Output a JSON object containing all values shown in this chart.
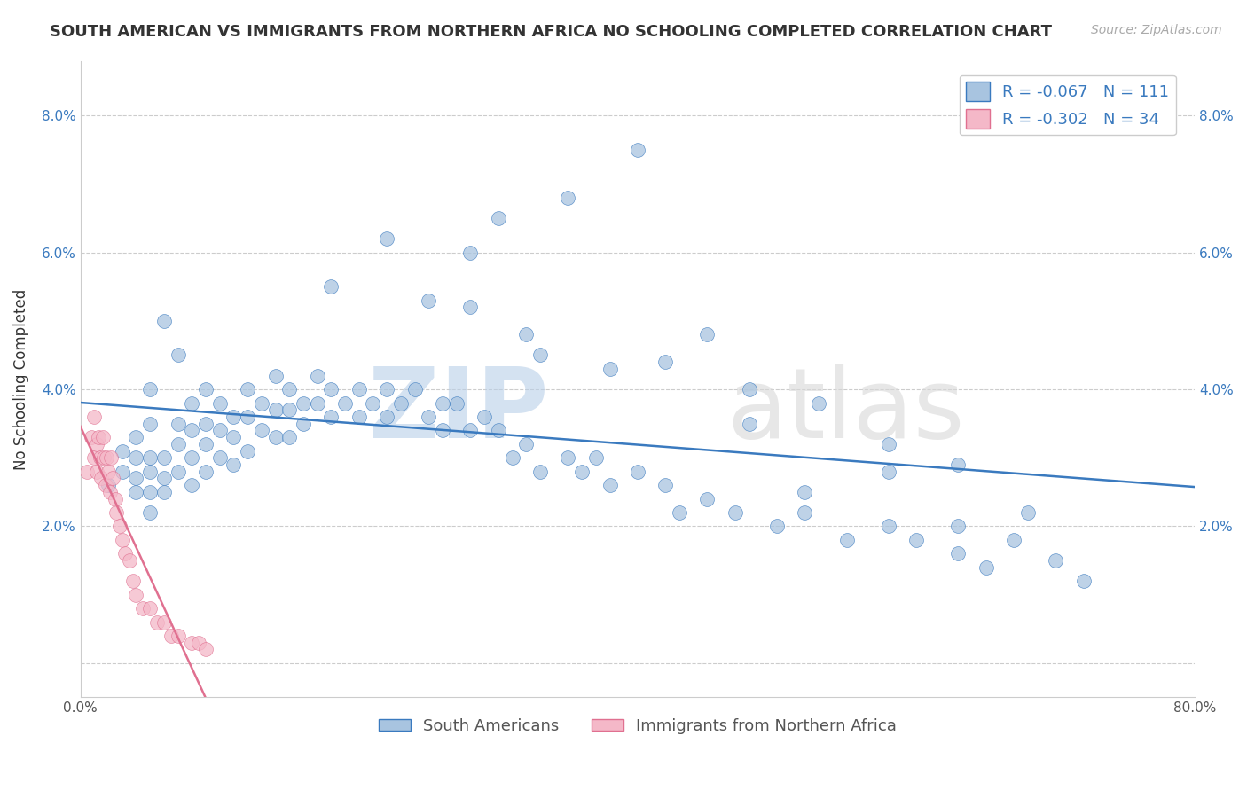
{
  "title": "SOUTH AMERICAN VS IMMIGRANTS FROM NORTHERN AFRICA NO SCHOOLING COMPLETED CORRELATION CHART",
  "source": "Source: ZipAtlas.com",
  "xlabel": "",
  "ylabel": "No Schooling Completed",
  "watermark_zip": "ZIP",
  "watermark_atlas": "atlas",
  "xlim": [
    0.0,
    0.8
  ],
  "ylim": [
    -0.005,
    0.088
  ],
  "yticks": [
    0.0,
    0.02,
    0.04,
    0.06,
    0.08
  ],
  "ytick_labels": [
    "",
    "2.0%",
    "4.0%",
    "6.0%",
    "8.0%"
  ],
  "xticks": [
    0.0,
    0.1,
    0.2,
    0.3,
    0.4,
    0.5,
    0.6,
    0.7,
    0.8
  ],
  "xtick_labels": [
    "0.0%",
    "",
    "",
    "",
    "",
    "",
    "",
    "",
    "80.0%"
  ],
  "blue_R": -0.067,
  "blue_N": 111,
  "pink_R": -0.302,
  "pink_N": 34,
  "blue_color": "#a8c4e0",
  "pink_color": "#f4b8c8",
  "blue_line_color": "#3a7abf",
  "pink_line_color": "#e07090",
  "blue_scatter_x": [
    0.02,
    0.03,
    0.03,
    0.04,
    0.04,
    0.04,
    0.04,
    0.05,
    0.05,
    0.05,
    0.05,
    0.05,
    0.05,
    0.06,
    0.06,
    0.06,
    0.06,
    0.07,
    0.07,
    0.07,
    0.07,
    0.08,
    0.08,
    0.08,
    0.08,
    0.09,
    0.09,
    0.09,
    0.09,
    0.1,
    0.1,
    0.1,
    0.11,
    0.11,
    0.11,
    0.12,
    0.12,
    0.12,
    0.13,
    0.13,
    0.14,
    0.14,
    0.14,
    0.15,
    0.15,
    0.15,
    0.16,
    0.16,
    0.17,
    0.17,
    0.18,
    0.18,
    0.19,
    0.2,
    0.2,
    0.21,
    0.22,
    0.22,
    0.23,
    0.24,
    0.25,
    0.26,
    0.26,
    0.27,
    0.28,
    0.29,
    0.3,
    0.31,
    0.32,
    0.33,
    0.35,
    0.36,
    0.38,
    0.4,
    0.42,
    0.43,
    0.45,
    0.47,
    0.5,
    0.52,
    0.55,
    0.58,
    0.6,
    0.63,
    0.65,
    0.3,
    0.28,
    0.35,
    0.4,
    0.45,
    0.18,
    0.22,
    0.25,
    0.33,
    0.37,
    0.48,
    0.52,
    0.58,
    0.63,
    0.67,
    0.7,
    0.72,
    0.28,
    0.32,
    0.38,
    0.42,
    0.48,
    0.53,
    0.58,
    0.63,
    0.68
  ],
  "blue_scatter_y": [
    0.026,
    0.031,
    0.028,
    0.033,
    0.03,
    0.027,
    0.025,
    0.03,
    0.028,
    0.025,
    0.022,
    0.035,
    0.04,
    0.03,
    0.027,
    0.025,
    0.05,
    0.035,
    0.032,
    0.028,
    0.045,
    0.038,
    0.034,
    0.03,
    0.026,
    0.04,
    0.035,
    0.032,
    0.028,
    0.038,
    0.034,
    0.03,
    0.036,
    0.033,
    0.029,
    0.04,
    0.036,
    0.031,
    0.038,
    0.034,
    0.042,
    0.037,
    0.033,
    0.04,
    0.037,
    0.033,
    0.038,
    0.035,
    0.042,
    0.038,
    0.04,
    0.036,
    0.038,
    0.04,
    0.036,
    0.038,
    0.04,
    0.036,
    0.038,
    0.04,
    0.036,
    0.038,
    0.034,
    0.038,
    0.034,
    0.036,
    0.034,
    0.03,
    0.032,
    0.028,
    0.03,
    0.028,
    0.026,
    0.028,
    0.026,
    0.022,
    0.024,
    0.022,
    0.02,
    0.022,
    0.018,
    0.02,
    0.018,
    0.016,
    0.014,
    0.065,
    0.06,
    0.068,
    0.075,
    0.048,
    0.055,
    0.062,
    0.053,
    0.045,
    0.03,
    0.035,
    0.025,
    0.028,
    0.02,
    0.018,
    0.015,
    0.012,
    0.052,
    0.048,
    0.043,
    0.044,
    0.04,
    0.038,
    0.032,
    0.029,
    0.022
  ],
  "pink_scatter_x": [
    0.005,
    0.008,
    0.01,
    0.01,
    0.012,
    0.012,
    0.013,
    0.014,
    0.015,
    0.016,
    0.017,
    0.018,
    0.019,
    0.02,
    0.021,
    0.022,
    0.023,
    0.025,
    0.026,
    0.028,
    0.03,
    0.032,
    0.035,
    0.038,
    0.04,
    0.045,
    0.05,
    0.055,
    0.06,
    0.065,
    0.07,
    0.08,
    0.085,
    0.09
  ],
  "pink_scatter_y": [
    0.028,
    0.033,
    0.03,
    0.036,
    0.032,
    0.028,
    0.033,
    0.03,
    0.027,
    0.033,
    0.03,
    0.026,
    0.03,
    0.028,
    0.025,
    0.03,
    0.027,
    0.024,
    0.022,
    0.02,
    0.018,
    0.016,
    0.015,
    0.012,
    0.01,
    0.008,
    0.008,
    0.006,
    0.006,
    0.004,
    0.004,
    0.003,
    0.003,
    0.002
  ],
  "title_fontsize": 13,
  "label_fontsize": 12,
  "tick_fontsize": 11,
  "legend_fontsize": 13
}
